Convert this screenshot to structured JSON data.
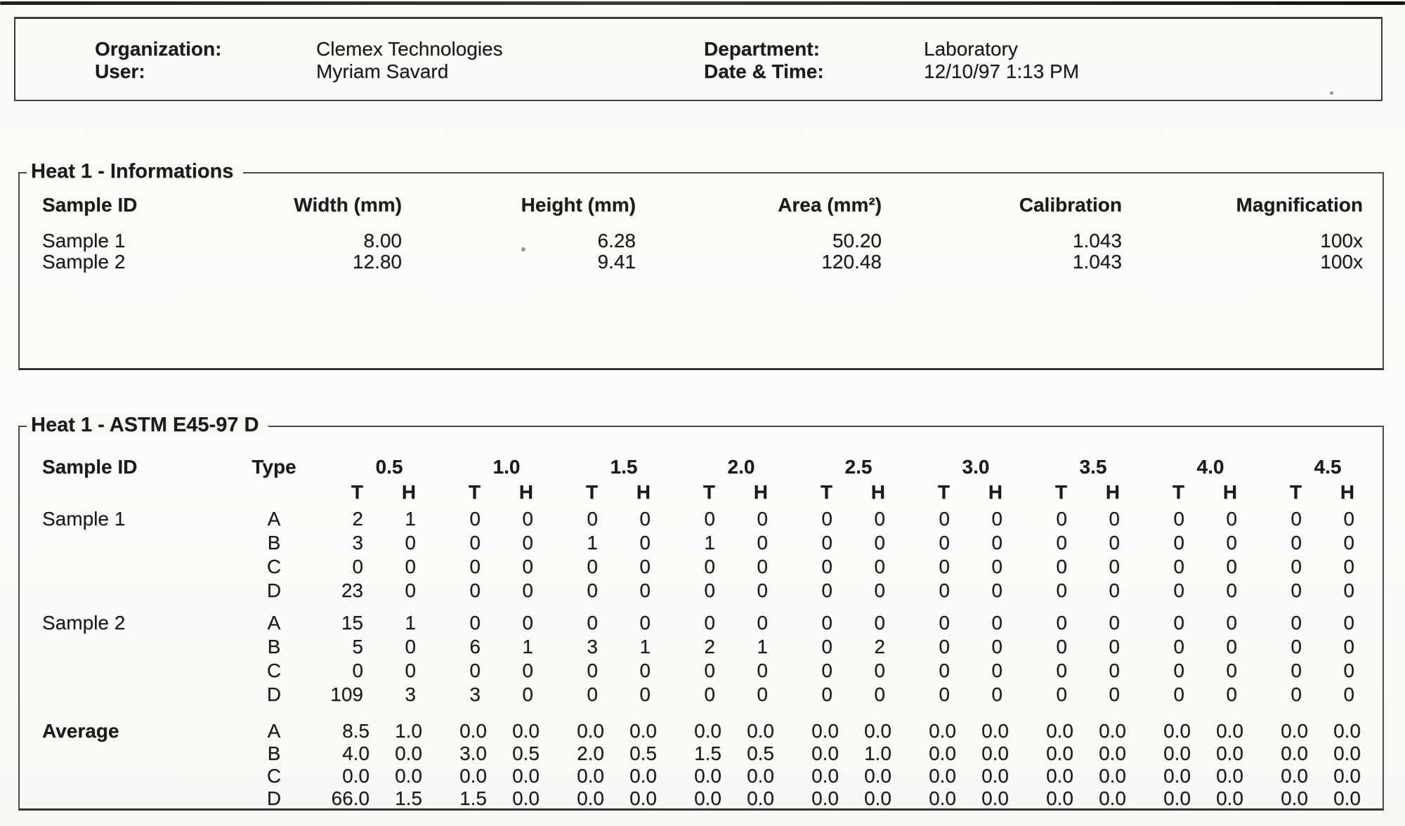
{
  "header_box": {
    "fields": [
      {
        "label": "Organization:",
        "value": "Clemex Technologies"
      },
      {
        "label": "User:",
        "value": "Myriam Savard"
      },
      {
        "label": "Department:",
        "value": "Laboratory"
      },
      {
        "label": "Date & Time:",
        "value": "12/10/97 1:13 PM"
      }
    ]
  },
  "info_section": {
    "title": "Heat 1 - Informations",
    "columns": [
      "Sample ID",
      "Width (mm)",
      "Height (mm)",
      "Area (mm²)",
      "Calibration",
      "Magnification"
    ],
    "rows": [
      [
        "Sample 1",
        "8.00",
        "6.28",
        "50.20",
        "1.043",
        "100x"
      ],
      [
        "Sample 2",
        "12.80",
        "9.41",
        "120.48",
        "1.043",
        "100x"
      ]
    ]
  },
  "astm_section": {
    "title": "Heat 1 - ASTM E45-97 D",
    "sample_header": "Sample ID",
    "type_header": "Type",
    "severity_levels": [
      "0.5",
      "1.0",
      "1.5",
      "2.0",
      "2.5",
      "3.0",
      "3.5",
      "4.0",
      "4.5"
    ],
    "subcolumns": [
      "T",
      "H"
    ],
    "blocks": [
      {
        "label": "Sample 1",
        "bold": false,
        "rows": [
          {
            "type": "A",
            "values": [
              "2",
              "1",
              "0",
              "0",
              "0",
              "0",
              "0",
              "0",
              "0",
              "0",
              "0",
              "0",
              "0",
              "0",
              "0",
              "0",
              "0",
              "0"
            ]
          },
          {
            "type": "B",
            "values": [
              "3",
              "0",
              "0",
              "0",
              "1",
              "0",
              "1",
              "0",
              "0",
              "0",
              "0",
              "0",
              "0",
              "0",
              "0",
              "0",
              "0",
              "0"
            ]
          },
          {
            "type": "C",
            "values": [
              "0",
              "0",
              "0",
              "0",
              "0",
              "0",
              "0",
              "0",
              "0",
              "0",
              "0",
              "0",
              "0",
              "0",
              "0",
              "0",
              "0",
              "0"
            ]
          },
          {
            "type": "D",
            "values": [
              "23",
              "0",
              "0",
              "0",
              "0",
              "0",
              "0",
              "0",
              "0",
              "0",
              "0",
              "0",
              "0",
              "0",
              "0",
              "0",
              "0",
              "0"
            ]
          }
        ]
      },
      {
        "label": "Sample 2",
        "bold": false,
        "rows": [
          {
            "type": "A",
            "values": [
              "15",
              "1",
              "0",
              "0",
              "0",
              "0",
              "0",
              "0",
              "0",
              "0",
              "0",
              "0",
              "0",
              "0",
              "0",
              "0",
              "0",
              "0"
            ]
          },
          {
            "type": "B",
            "values": [
              "5",
              "0",
              "6",
              "1",
              "3",
              "1",
              "2",
              "1",
              "0",
              "2",
              "0",
              "0",
              "0",
              "0",
              "0",
              "0",
              "0",
              "0"
            ]
          },
          {
            "type": "C",
            "values": [
              "0",
              "0",
              "0",
              "0",
              "0",
              "0",
              "0",
              "0",
              "0",
              "0",
              "0",
              "0",
              "0",
              "0",
              "0",
              "0",
              "0",
              "0"
            ]
          },
          {
            "type": "D",
            "values": [
              "109",
              "3",
              "3",
              "0",
              "0",
              "0",
              "0",
              "0",
              "0",
              "0",
              "0",
              "0",
              "0",
              "0",
              "0",
              "0",
              "0",
              "0"
            ]
          }
        ]
      },
      {
        "label": "Average",
        "bold": true,
        "rows": [
          {
            "type": "A",
            "values": [
              "8.5",
              "1.0",
              "0.0",
              "0.0",
              "0.0",
              "0.0",
              "0.0",
              "0.0",
              "0.0",
              "0.0",
              "0.0",
              "0.0",
              "0.0",
              "0.0",
              "0.0",
              "0.0",
              "0.0",
              "0.0"
            ]
          },
          {
            "type": "B",
            "values": [
              "4.0",
              "0.0",
              "3.0",
              "0.5",
              "2.0",
              "0.5",
              "1.5",
              "0.5",
              "0.0",
              "1.0",
              "0.0",
              "0.0",
              "0.0",
              "0.0",
              "0.0",
              "0.0",
              "0.0",
              "0.0"
            ]
          },
          {
            "type": "C",
            "values": [
              "0.0",
              "0.0",
              "0.0",
              "0.0",
              "0.0",
              "0.0",
              "0.0",
              "0.0",
              "0.0",
              "0.0",
              "0.0",
              "0.0",
              "0.0",
              "0.0",
              "0.0",
              "0.0",
              "0.0",
              "0.0"
            ]
          },
          {
            "type": "D",
            "values": [
              "66.0",
              "1.5",
              "1.5",
              "0.0",
              "0.0",
              "0.0",
              "0.0",
              "0.0",
              "0.0",
              "0.0",
              "0.0",
              "0.0",
              "0.0",
              "0.0",
              "0.0",
              "0.0",
              "0.0",
              "0.0"
            ]
          }
        ]
      }
    ]
  }
}
